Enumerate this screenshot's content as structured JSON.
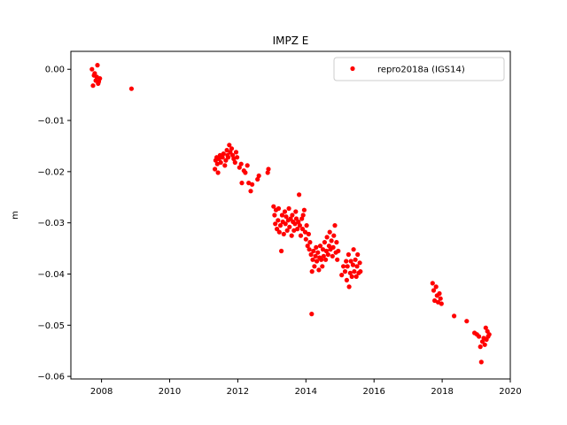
{
  "chart_data": {
    "type": "scatter",
    "title": "IMPZ E",
    "xlabel": "",
    "ylabel": "m",
    "xlim": [
      2007.1,
      2020.0
    ],
    "ylim": [
      -0.0605,
      0.0035
    ],
    "xticks": [
      2008,
      2010,
      2012,
      2014,
      2016,
      2018,
      2020
    ],
    "xtick_labels": [
      "2008",
      "2010",
      "2012",
      "2014",
      "2016",
      "2018",
      "2020"
    ],
    "yticks": [
      0.0,
      -0.01,
      -0.02,
      -0.03,
      -0.04,
      -0.05,
      -0.06
    ],
    "ytick_labels": [
      "0.00",
      "−0.01",
      "−0.02",
      "−0.03",
      "−0.04",
      "−0.05",
      "−0.06"
    ],
    "legend_position": "top-right",
    "grid": false,
    "series": [
      {
        "name": "repro2018a (IGS14)",
        "color": "#ff0000",
        "marker": "circle",
        "points": [
          [
            2007.72,
            0.0
          ],
          [
            2007.75,
            -0.0032
          ],
          [
            2007.78,
            -0.0012
          ],
          [
            2007.8,
            -0.0008
          ],
          [
            2007.83,
            -0.0022
          ],
          [
            2007.86,
            -0.0015
          ],
          [
            2007.88,
            0.0008
          ],
          [
            2007.9,
            -0.0028
          ],
          [
            2007.92,
            -0.0024
          ],
          [
            2007.95,
            -0.0018
          ],
          [
            2008.88,
            -0.0038
          ],
          [
            2011.33,
            -0.0195
          ],
          [
            2011.35,
            -0.0178
          ],
          [
            2011.38,
            -0.0172
          ],
          [
            2011.4,
            -0.0185
          ],
          [
            2011.42,
            -0.0202
          ],
          [
            2011.45,
            -0.0175
          ],
          [
            2011.48,
            -0.0168
          ],
          [
            2011.5,
            -0.0182
          ],
          [
            2011.55,
            -0.0172
          ],
          [
            2011.58,
            -0.0165
          ],
          [
            2011.62,
            -0.0188
          ],
          [
            2011.65,
            -0.0178
          ],
          [
            2011.68,
            -0.0158
          ],
          [
            2011.7,
            -0.0168
          ],
          [
            2011.72,
            -0.0172
          ],
          [
            2011.75,
            -0.0148
          ],
          [
            2011.78,
            -0.0162
          ],
          [
            2011.82,
            -0.0155
          ],
          [
            2011.85,
            -0.0168
          ],
          [
            2011.88,
            -0.0175
          ],
          [
            2011.92,
            -0.0182
          ],
          [
            2011.95,
            -0.0162
          ],
          [
            2011.98,
            -0.0172
          ],
          [
            2012.05,
            -0.0192
          ],
          [
            2012.1,
            -0.0185
          ],
          [
            2012.12,
            -0.0222
          ],
          [
            2012.18,
            -0.0198
          ],
          [
            2012.22,
            -0.0202
          ],
          [
            2012.28,
            -0.0188
          ],
          [
            2012.32,
            -0.0222
          ],
          [
            2012.38,
            -0.0238
          ],
          [
            2012.42,
            -0.0225
          ],
          [
            2012.58,
            -0.0215
          ],
          [
            2012.62,
            -0.0208
          ],
          [
            2012.88,
            -0.0202
          ],
          [
            2012.9,
            -0.0195
          ],
          [
            2013.05,
            -0.0268
          ],
          [
            2013.08,
            -0.0285
          ],
          [
            2013.1,
            -0.0302
          ],
          [
            2013.12,
            -0.0275
          ],
          [
            2013.15,
            -0.0312
          ],
          [
            2013.18,
            -0.0295
          ],
          [
            2013.2,
            -0.0272
          ],
          [
            2013.22,
            -0.0318
          ],
          [
            2013.25,
            -0.0305
          ],
          [
            2013.28,
            -0.0355
          ],
          [
            2013.3,
            -0.0285
          ],
          [
            2013.32,
            -0.0298
          ],
          [
            2013.35,
            -0.0322
          ],
          [
            2013.38,
            -0.0278
          ],
          [
            2013.4,
            -0.0302
          ],
          [
            2013.42,
            -0.0288
          ],
          [
            2013.45,
            -0.0315
          ],
          [
            2013.48,
            -0.0295
          ],
          [
            2013.5,
            -0.0272
          ],
          [
            2013.52,
            -0.0308
          ],
          [
            2013.55,
            -0.0292
          ],
          [
            2013.58,
            -0.0325
          ],
          [
            2013.6,
            -0.0285
          ],
          [
            2013.62,
            -0.0298
          ],
          [
            2013.65,
            -0.0315
          ],
          [
            2013.68,
            -0.0302
          ],
          [
            2013.7,
            -0.0278
          ],
          [
            2013.72,
            -0.0292
          ],
          [
            2013.75,
            -0.0312
          ],
          [
            2013.78,
            -0.0298
          ],
          [
            2013.8,
            -0.0245
          ],
          [
            2013.82,
            -0.0305
          ],
          [
            2013.85,
            -0.0325
          ],
          [
            2013.88,
            -0.0292
          ],
          [
            2013.9,
            -0.0312
          ],
          [
            2013.92,
            -0.0285
          ],
          [
            2013.95,
            -0.0275
          ],
          [
            2013.98,
            -0.0318
          ],
          [
            2014.0,
            -0.0332
          ],
          [
            2014.02,
            -0.0305
          ],
          [
            2014.05,
            -0.0345
          ],
          [
            2014.08,
            -0.0322
          ],
          [
            2014.1,
            -0.0352
          ],
          [
            2014.12,
            -0.0338
          ],
          [
            2014.15,
            -0.0362
          ],
          [
            2014.17,
            -0.0478
          ],
          [
            2014.18,
            -0.0395
          ],
          [
            2014.2,
            -0.0372
          ],
          [
            2014.22,
            -0.0355
          ],
          [
            2014.25,
            -0.0385
          ],
          [
            2014.28,
            -0.0365
          ],
          [
            2014.3,
            -0.0348
          ],
          [
            2014.32,
            -0.0375
          ],
          [
            2014.35,
            -0.0358
          ],
          [
            2014.38,
            -0.0392
          ],
          [
            2014.4,
            -0.0368
          ],
          [
            2014.42,
            -0.0345
          ],
          [
            2014.45,
            -0.0372
          ],
          [
            2014.48,
            -0.0385
          ],
          [
            2014.5,
            -0.0352
          ],
          [
            2014.52,
            -0.0365
          ],
          [
            2014.55,
            -0.0338
          ],
          [
            2014.58,
            -0.0372
          ],
          [
            2014.6,
            -0.0355
          ],
          [
            2014.62,
            -0.0328
          ],
          [
            2014.65,
            -0.0362
          ],
          [
            2014.68,
            -0.0345
          ],
          [
            2014.7,
            -0.0318
          ],
          [
            2014.72,
            -0.0352
          ],
          [
            2014.75,
            -0.0335
          ],
          [
            2014.78,
            -0.0365
          ],
          [
            2014.8,
            -0.0348
          ],
          [
            2014.82,
            -0.0325
          ],
          [
            2014.85,
            -0.0305
          ],
          [
            2014.88,
            -0.0358
          ],
          [
            2014.9,
            -0.0338
          ],
          [
            2014.92,
            -0.0372
          ],
          [
            2014.95,
            -0.0355
          ],
          [
            2015.05,
            -0.0402
          ],
          [
            2015.1,
            -0.0385
          ],
          [
            2015.15,
            -0.0395
          ],
          [
            2015.18,
            -0.0375
          ],
          [
            2015.2,
            -0.0412
          ],
          [
            2015.22,
            -0.0385
          ],
          [
            2015.25,
            -0.0362
          ],
          [
            2015.27,
            -0.0425
          ],
          [
            2015.3,
            -0.0398
          ],
          [
            2015.32,
            -0.0375
          ],
          [
            2015.35,
            -0.0405
          ],
          [
            2015.38,
            -0.0382
          ],
          [
            2015.4,
            -0.0352
          ],
          [
            2015.42,
            -0.0395
          ],
          [
            2015.45,
            -0.0372
          ],
          [
            2015.48,
            -0.0405
          ],
          [
            2015.5,
            -0.0385
          ],
          [
            2015.52,
            -0.0362
          ],
          [
            2015.55,
            -0.0398
          ],
          [
            2015.58,
            -0.0378
          ],
          [
            2015.6,
            -0.0395
          ],
          [
            2017.72,
            -0.0418
          ],
          [
            2017.75,
            -0.0432
          ],
          [
            2017.78,
            -0.0452
          ],
          [
            2017.82,
            -0.0425
          ],
          [
            2017.85,
            -0.0442
          ],
          [
            2017.88,
            -0.0455
          ],
          [
            2017.92,
            -0.0438
          ],
          [
            2017.95,
            -0.0448
          ],
          [
            2017.98,
            -0.0458
          ],
          [
            2018.35,
            -0.0482
          ],
          [
            2018.72,
            -0.0492
          ],
          [
            2018.95,
            -0.0515
          ],
          [
            2019.02,
            -0.0518
          ],
          [
            2019.08,
            -0.0522
          ],
          [
            2019.12,
            -0.0542
          ],
          [
            2019.15,
            -0.0572
          ],
          [
            2019.18,
            -0.0532
          ],
          [
            2019.22,
            -0.0525
          ],
          [
            2019.25,
            -0.0538
          ],
          [
            2019.28,
            -0.0505
          ],
          [
            2019.3,
            -0.0528
          ],
          [
            2019.33,
            -0.0512
          ],
          [
            2019.35,
            -0.0522
          ],
          [
            2019.38,
            -0.0518
          ]
        ]
      }
    ]
  }
}
